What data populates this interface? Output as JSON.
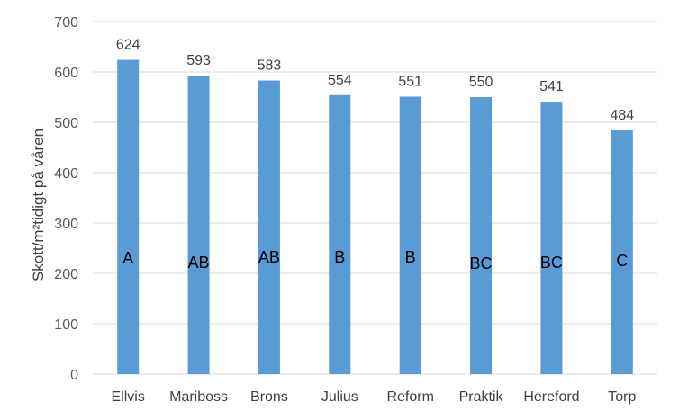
{
  "chart_data": {
    "type": "bar",
    "categories": [
      "Ellvis",
      "Mariboss",
      "Brons",
      "Julius",
      "Reform",
      "Praktik",
      "Hereford",
      "Torp"
    ],
    "values": [
      624,
      593,
      583,
      554,
      551,
      550,
      541,
      484
    ],
    "data_labels": [
      "624",
      "593",
      "583",
      "554",
      "551",
      "550",
      "541",
      "484"
    ],
    "group_letters": [
      "A",
      "AB",
      "AB",
      "B",
      "B",
      "BC",
      "BC",
      "C"
    ],
    "ylabel": "Skott/m²tidigt på våren",
    "ylim": [
      0,
      700
    ],
    "yticks": [
      "0",
      "100",
      "200",
      "300",
      "400",
      "500",
      "600",
      "700"
    ],
    "grid": true,
    "legend": "none",
    "colors": {
      "bar": "#5b9bd5",
      "grid": "#d9d9d9"
    }
  }
}
